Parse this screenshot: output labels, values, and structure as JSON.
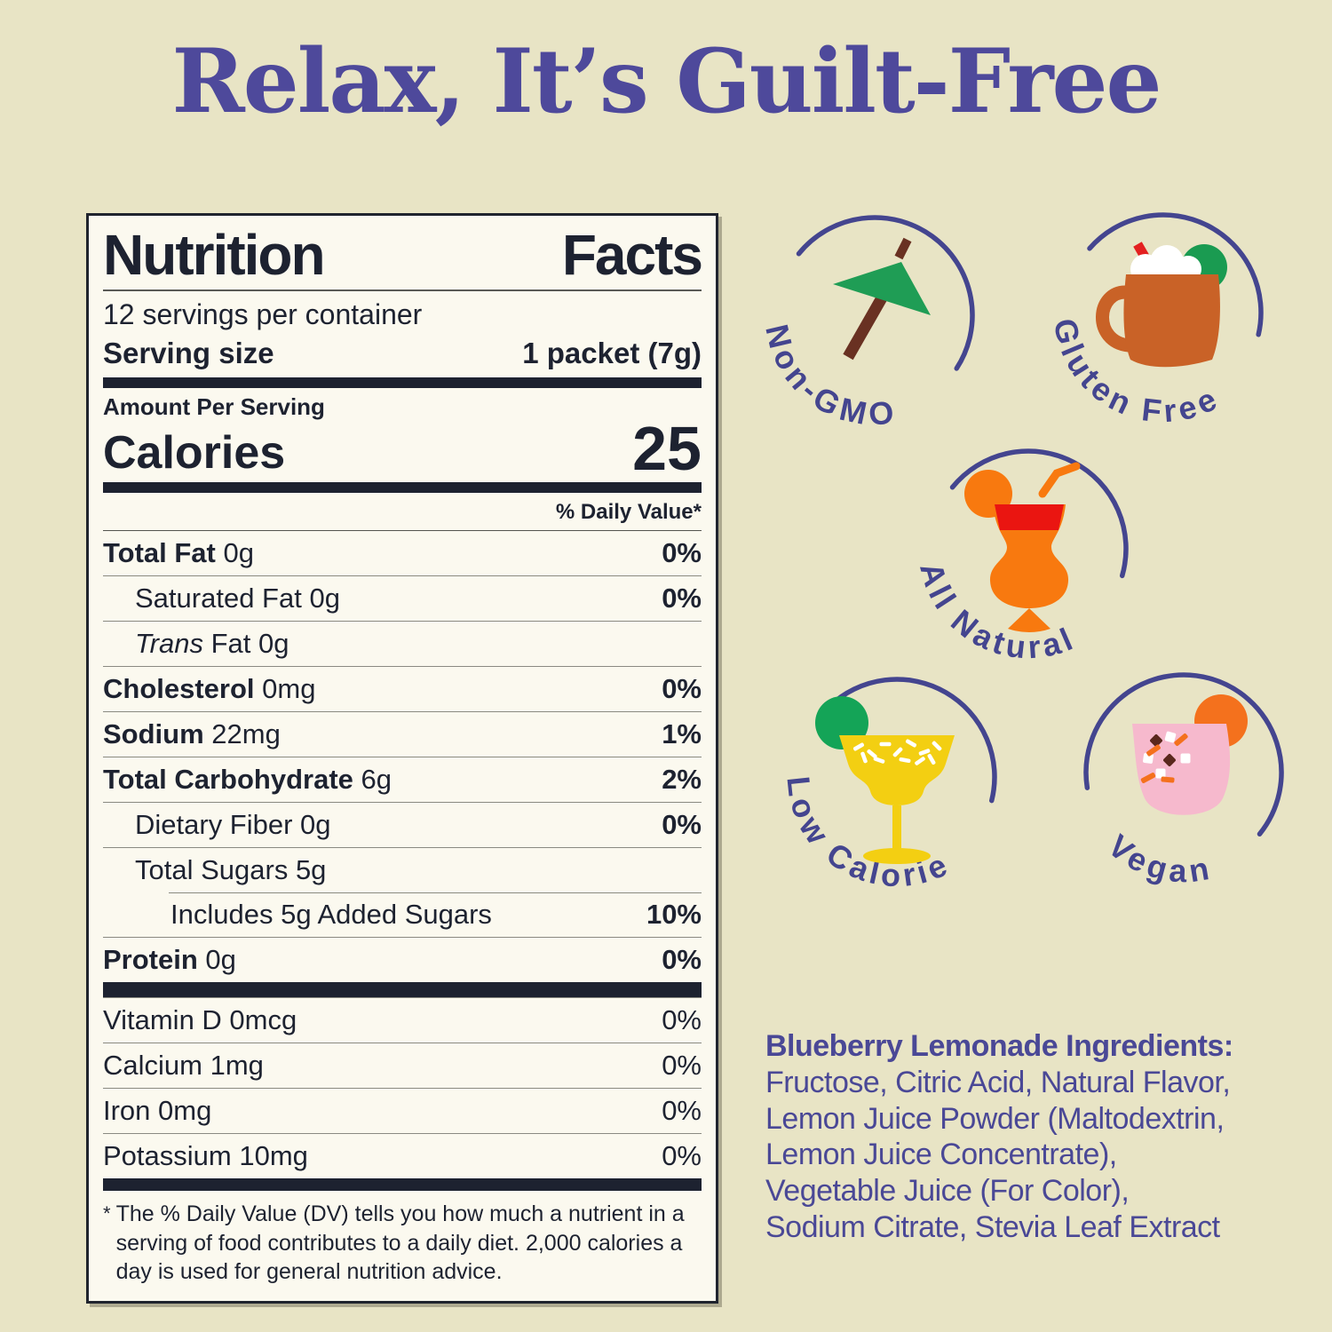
{
  "palette": {
    "background": "#e8e4c5",
    "heading_purple": "#4e499b",
    "badge_purple": "#44458f",
    "label_ink": "#1d2230",
    "label_bg": "#fbf9ef",
    "umbrella_green": "#1f9d55",
    "stick_brown": "#693122",
    "mug_copper": "#c96227",
    "straw_red": "#e32020",
    "lime_green": "#1a9b51",
    "cocktail_orange": "#f8790f",
    "band_red": "#ea1511",
    "margarita_yellow": "#f3cf12",
    "margarita_lime": "#14a457",
    "vegan_pink": "#f6b9cd",
    "vegan_orange": "#f4711d",
    "sprinkle_brown": "#5a281d",
    "foam_white": "#ffffff"
  },
  "heading": {
    "text": "Relax, It’s Guilt-Free"
  },
  "nutrition_label": {
    "title": "Nutrition Facts",
    "servings_per_container": "12 servings per container",
    "serving_size_label": "Serving size",
    "serving_size_value": "1 packet (7g)",
    "amount_per_serving": "Amount Per Serving",
    "calories_label": "Calories",
    "calories_value": "25",
    "daily_value_header": "% Daily Value*",
    "rows": [
      {
        "prefix": "Total Fat",
        "rest": "0g",
        "pct": "0%",
        "style": "bold",
        "indent": 0
      },
      {
        "prefix": "Saturated Fat",
        "rest": "0g",
        "pct": "0%",
        "style": "plain",
        "indent": 1
      },
      {
        "prefix": "Trans",
        "rest": "Fat 0g",
        "pct": "",
        "style": "italic",
        "indent": 1
      },
      {
        "prefix": "Cholesterol",
        "rest": "0mg",
        "pct": "0%",
        "style": "bold",
        "indent": 0
      },
      {
        "prefix": "Sodium",
        "rest": "22mg",
        "pct": "1%",
        "style": "bold",
        "indent": 0
      },
      {
        "prefix": "Total Carbohydrate",
        "rest": "6g",
        "pct": "2%",
        "style": "bold",
        "indent": 0
      },
      {
        "prefix": "Dietary Fiber",
        "rest": "0g",
        "pct": "0%",
        "style": "plain",
        "indent": 1
      },
      {
        "prefix": "Total Sugars",
        "rest": "5g",
        "pct": "",
        "style": "plain",
        "indent": 1
      },
      {
        "prefix": "Includes 5g Added Sugars",
        "rest": "",
        "pct": "10%",
        "style": "plain",
        "indent": 2,
        "inset_rule": true
      },
      {
        "prefix": "Protein",
        "rest": "0g",
        "pct": "0%",
        "style": "bold",
        "indent": 0
      }
    ],
    "vitamin_rows": [
      {
        "prefix": "Vitamin D",
        "rest": "0mcg",
        "pct": "0%"
      },
      {
        "prefix": "Calcium",
        "rest": "1mg",
        "pct": "0%"
      },
      {
        "prefix": "Iron",
        "rest": "0mg",
        "pct": "0%"
      },
      {
        "prefix": "Potassium",
        "rest": "10mg",
        "pct": "0%"
      }
    ],
    "footnote_marker": "*",
    "footnote": "The % Daily Value (DV) tells you how much a nutrient in a serving of food contributes to a daily diet. 2,000 calories a day is used for general nutrition advice."
  },
  "badges": [
    {
      "id": "non-gmo",
      "label": "Non-GMO",
      "icon": "cocktail-umbrella-icon"
    },
    {
      "id": "gluten-free",
      "label": "Gluten Free",
      "icon": "mule-mug-icon"
    },
    {
      "id": "all-natural",
      "label": "All Natural",
      "icon": "hurricane-cocktail-icon"
    },
    {
      "id": "low-calorie",
      "label": "Low Calorie",
      "icon": "margarita-glass-icon"
    },
    {
      "id": "vegan",
      "label": "Vegan",
      "icon": "rocks-glass-icon"
    }
  ],
  "ingredients": {
    "title": "Blueberry Lemonade Ingredients:",
    "lines": [
      "Fructose, Citric Acid, Natural Flavor,",
      "Lemon Juice Powder (Maltodextrin,",
      "Lemon Juice Concentrate),",
      "Vegetable Juice (For Color),",
      "Sodium Citrate, Stevia Leaf Extract"
    ]
  }
}
